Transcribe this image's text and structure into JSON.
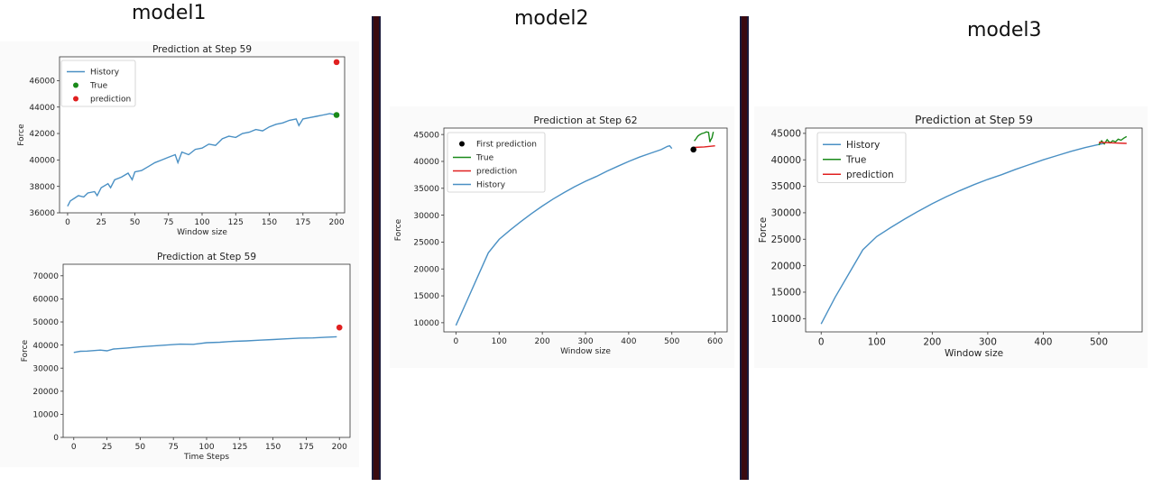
{
  "headings": {
    "model1": "model1",
    "model2": "model2",
    "model3": "model3"
  },
  "colors": {
    "history": "#4a90c4",
    "true": "#1a8a1a",
    "prediction": "#e02020",
    "first_prediction": "#000000",
    "divider": "#3a0a10"
  },
  "chart_data": [
    {
      "id": "model1-top",
      "type": "line",
      "title": "Prediction at Step 59",
      "xlabel": "Window size",
      "ylabel": "Force",
      "xlim": [
        -6,
        206
      ],
      "ylim": [
        36000,
        47800
      ],
      "xticks": [
        0,
        25,
        50,
        75,
        100,
        125,
        150,
        175,
        200
      ],
      "yticks": [
        36000,
        38000,
        40000,
        42000,
        44000,
        46000
      ],
      "legend": [
        "History",
        "True",
        "prediction"
      ],
      "legend_position": "top-left",
      "series": [
        {
          "name": "History",
          "kind": "line",
          "color": "#4a90c4",
          "x": [
            0,
            2,
            5,
            8,
            12,
            15,
            20,
            22,
            25,
            30,
            32,
            35,
            40,
            45,
            48,
            50,
            55,
            60,
            65,
            70,
            75,
            80,
            82,
            85,
            90,
            95,
            100,
            105,
            110,
            115,
            120,
            125,
            130,
            135,
            140,
            145,
            150,
            155,
            160,
            165,
            170,
            172,
            175,
            180,
            185,
            190,
            195,
            200
          ],
          "y": [
            36500,
            36900,
            37100,
            37300,
            37200,
            37500,
            37600,
            37300,
            37900,
            38200,
            37900,
            38500,
            38700,
            39000,
            38500,
            39100,
            39200,
            39500,
            39800,
            40000,
            40200,
            40400,
            39800,
            40600,
            40400,
            40800,
            40900,
            41200,
            41100,
            41600,
            41800,
            41700,
            42000,
            42100,
            42300,
            42200,
            42500,
            42700,
            42800,
            43000,
            43100,
            42600,
            43100,
            43200,
            43300,
            43400,
            43500,
            43400
          ]
        },
        {
          "name": "True",
          "kind": "point",
          "color": "#1a8a1a",
          "x": [
            200
          ],
          "y": [
            43400
          ]
        },
        {
          "name": "prediction",
          "kind": "point",
          "color": "#e02020",
          "x": [
            200
          ],
          "y": [
            47400
          ]
        }
      ]
    },
    {
      "id": "model1-bottom",
      "type": "line",
      "title": "Prediction at Step 59",
      "xlabel": "Time Steps",
      "ylabel": "Force",
      "xlim": [
        -8,
        208
      ],
      "ylim": [
        0,
        75000
      ],
      "xticks": [
        0,
        25,
        50,
        75,
        100,
        125,
        150,
        175,
        200
      ],
      "yticks": [
        0,
        10000,
        20000,
        30000,
        40000,
        50000,
        60000,
        70000
      ],
      "legend": [],
      "series": [
        {
          "name": "History",
          "kind": "line",
          "color": "#4a90c4",
          "x": [
            0,
            5,
            10,
            20,
            25,
            30,
            40,
            50,
            60,
            70,
            80,
            90,
            100,
            110,
            120,
            130,
            140,
            150,
            160,
            170,
            180,
            190,
            198
          ],
          "y": [
            36800,
            37300,
            37400,
            37800,
            37500,
            38300,
            38700,
            39200,
            39600,
            40000,
            40400,
            40300,
            41000,
            41200,
            41600,
            41800,
            42100,
            42400,
            42700,
            43000,
            43100,
            43400,
            43600
          ]
        },
        {
          "name": "prediction",
          "kind": "point",
          "color": "#e02020",
          "x": [
            200
          ],
          "y": [
            47600
          ]
        }
      ]
    },
    {
      "id": "model2",
      "type": "line",
      "title": "Prediction at Step 62",
      "xlabel": "Window size",
      "ylabel": "Force",
      "xlim": [
        -28,
        628
      ],
      "ylim": [
        8300,
        46200
      ],
      "xticks": [
        0,
        100,
        200,
        300,
        400,
        500,
        600
      ],
      "yticks": [
        10000,
        15000,
        20000,
        25000,
        30000,
        35000,
        40000,
        45000
      ],
      "legend": [
        "First prediction",
        "True",
        "prediction",
        "History"
      ],
      "legend_position": "top-left",
      "series": [
        {
          "name": "History",
          "kind": "line",
          "color": "#4a90c4",
          "x": [
            0,
            25,
            50,
            75,
            100,
            125,
            150,
            175,
            200,
            225,
            250,
            275,
            300,
            325,
            350,
            375,
            400,
            425,
            450,
            475,
            490,
            495,
            500
          ],
          "y": [
            9500,
            14000,
            18500,
            23000,
            25500,
            27200,
            28800,
            30300,
            31700,
            33000,
            34200,
            35300,
            36300,
            37200,
            38200,
            39100,
            40000,
            40800,
            41500,
            42200,
            42800,
            42900,
            42400
          ]
        },
        {
          "name": "True",
          "kind": "line",
          "color": "#1a8a1a",
          "x": [
            552,
            556,
            560,
            565,
            570,
            575,
            580,
            585,
            588,
            590,
            593,
            596
          ],
          "y": [
            43800,
            44200,
            44700,
            45000,
            45200,
            45300,
            45500,
            45400,
            43600,
            44000,
            44400,
            45500
          ]
        },
        {
          "name": "prediction",
          "kind": "line",
          "color": "#e02020",
          "x": [
            550,
            575,
            600
          ],
          "y": [
            42600,
            42700,
            42900
          ]
        },
        {
          "name": "First prediction",
          "kind": "point",
          "color": "#000000",
          "x": [
            550
          ],
          "y": [
            42200
          ]
        }
      ]
    },
    {
      "id": "model3",
      "type": "line",
      "title": "Prediction at Step 59",
      "xlabel": "Window size",
      "ylabel": "Force",
      "xlim": [
        -28,
        578
      ],
      "ylim": [
        7500,
        46000
      ],
      "xticks": [
        0,
        100,
        200,
        300,
        400,
        500
      ],
      "yticks": [
        10000,
        15000,
        20000,
        25000,
        30000,
        35000,
        40000,
        45000
      ],
      "legend": [
        "History",
        "True",
        "prediction"
      ],
      "legend_position": "top-left",
      "series": [
        {
          "name": "History",
          "kind": "line",
          "color": "#4a90c4",
          "x": [
            0,
            25,
            50,
            75,
            100,
            125,
            150,
            175,
            200,
            225,
            250,
            275,
            300,
            325,
            350,
            375,
            400,
            425,
            450,
            475,
            500,
            510
          ],
          "y": [
            9000,
            14000,
            18500,
            23000,
            25500,
            27200,
            28800,
            30300,
            31700,
            33000,
            34200,
            35300,
            36300,
            37200,
            38200,
            39100,
            40000,
            40800,
            41600,
            42300,
            42900,
            43100
          ]
        },
        {
          "name": "True",
          "kind": "line",
          "color": "#1a8a1a",
          "x": [
            500,
            505,
            510,
            515,
            520,
            525,
            530,
            535,
            540,
            545,
            550
          ],
          "y": [
            42800,
            43600,
            43000,
            43800,
            43200,
            43600,
            43400,
            43900,
            43700,
            44100,
            44400
          ]
        },
        {
          "name": "prediction",
          "kind": "line",
          "color": "#e02020",
          "x": [
            500,
            525,
            550
          ],
          "y": [
            43300,
            43200,
            43100
          ]
        }
      ]
    }
  ]
}
